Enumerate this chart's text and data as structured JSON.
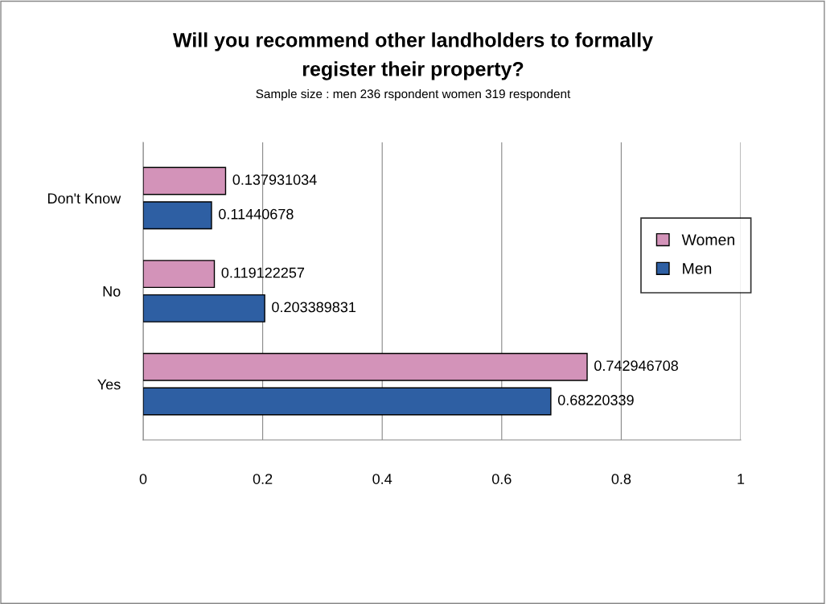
{
  "chart_data": {
    "type": "bar",
    "orientation": "horizontal",
    "title": "Will you recommend other landholders to formally\nregister their property?",
    "subtitle": "Sample size : men 236 rspondent women 319 respondent",
    "categories": [
      "Don't Know",
      "No",
      "Yes"
    ],
    "series": [
      {
        "name": "Women",
        "color": "#d393b9",
        "values": [
          0.137931034,
          0.119122257,
          0.742946708
        ]
      },
      {
        "name": "Men",
        "color": "#2e5fa3",
        "values": [
          0.11440678,
          0.203389831,
          0.68220339
        ]
      }
    ],
    "xlim": [
      0,
      1
    ],
    "xticks": [
      0,
      0.2,
      0.4,
      0.6,
      0.8,
      1
    ],
    "grid": "x",
    "legend": "right",
    "data_labels": true
  }
}
